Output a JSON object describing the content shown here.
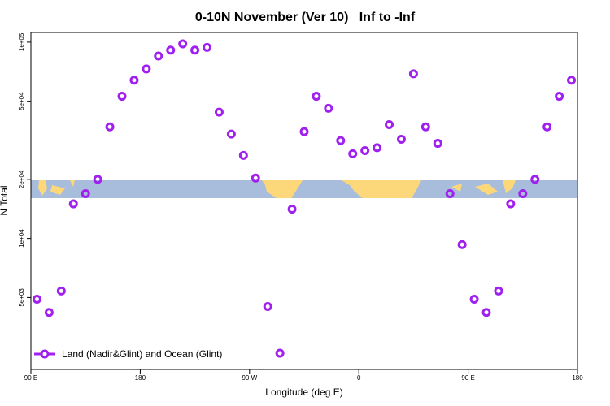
{
  "chart_data": {
    "type": "scatter",
    "title": "0-10N November (Ver 10)   Inf to -Inf",
    "x_label": "Longitude (deg E)",
    "y_label": "N Total",
    "log_y": true,
    "xlim": [
      90,
      540
    ],
    "xticks": [
      {
        "value": 90,
        "label": "90 E"
      },
      180,
      {
        "value": 270,
        "label": "90 W"
      },
      {
        "value": 360,
        "label": "0"
      },
      {
        "value": 450,
        "label": "90 E"
      },
      {
        "value": 540,
        "label": "180"
      }
    ],
    "ylim": [
      2150,
      112000
    ],
    "yticks": [
      {
        "value": 5000,
        "label": "5e+03"
      },
      {
        "value": 10000,
        "label": "1e+04"
      },
      {
        "value": 20000,
        "label": "2e+04"
      },
      {
        "value": 50000,
        "label": "5e+04"
      },
      {
        "value": 100000,
        "label": "1e+05"
      }
    ],
    "legend_position": "bottom-left",
    "x": [
      95,
      105,
      115,
      125,
      135,
      145,
      155,
      165,
      175,
      185,
      195,
      205,
      215,
      225,
      235,
      245,
      255,
      265,
      275,
      285,
      295,
      305,
      315,
      325,
      335,
      345,
      355,
      365,
      375,
      385,
      395,
      405,
      415,
      425,
      435,
      445,
      455,
      465,
      475,
      485,
      495,
      505,
      515,
      525,
      535
    ],
    "series": [
      {
        "name": "Land (Nadir&Glint) and Ocean (Glint)",
        "color": "#a020f0",
        "values": [
          4900,
          4200,
          5400,
          15000,
          16900,
          20000,
          37000,
          53000,
          64000,
          73000,
          85000,
          91000,
          98000,
          91000,
          94000,
          44000,
          34000,
          26500,
          20300,
          4500,
          2600,
          14100,
          35000,
          53000,
          46000,
          31500,
          27000,
          28000,
          29000,
          38000,
          32000,
          69000,
          37000,
          30500,
          16900,
          9300,
          4900,
          4200,
          5400,
          15000,
          16900,
          20000,
          37000,
          53000,
          64000
        ]
      }
    ]
  }
}
